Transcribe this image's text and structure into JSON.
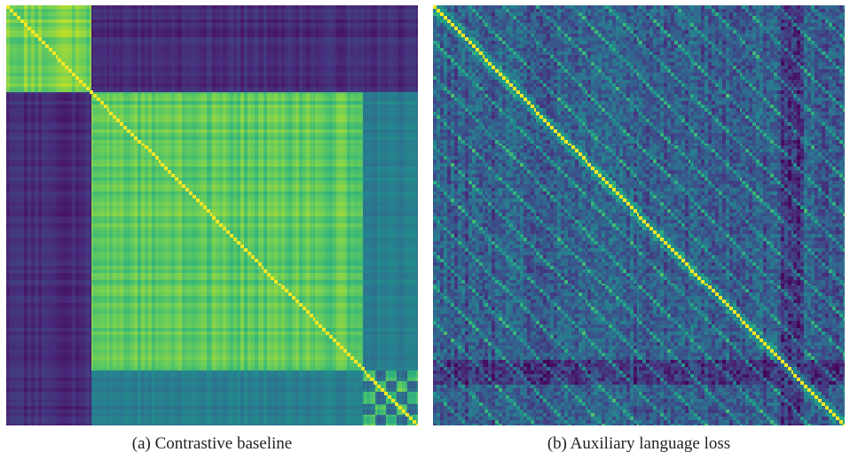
{
  "chart_data": [
    {
      "type": "heatmap",
      "caption": "(a) Contrastive baseline",
      "colormap": "viridis",
      "block_boundaries_fraction": [
        0.0,
        0.205,
        0.866,
        1.0
      ],
      "within_block_similarity": [
        0.9,
        0.85,
        0.82
      ],
      "between_block_similarity": {
        "block1_block2": 0.05,
        "block1_block3": 0.05,
        "block2_block3": 0.35
      }
    },
    {
      "type": "heatmap",
      "caption": "(b) Auxiliary language loss",
      "colormap": "viridis",
      "diagonal_similarity": 1.0,
      "off_diagonal_mean": 0.35,
      "pattern": "strong diagonal with periodic off-diagonal bands"
    }
  ]
}
